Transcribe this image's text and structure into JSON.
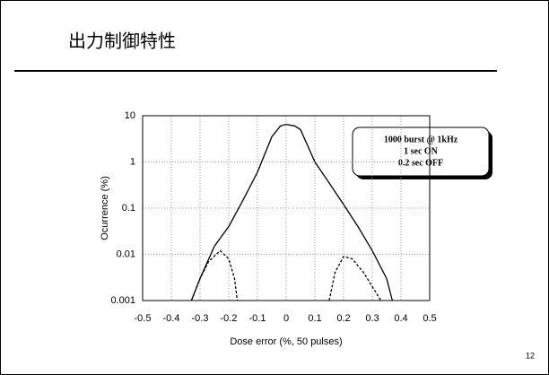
{
  "header": {
    "title": "出力制御特性",
    "page_number": "12"
  },
  "chart_data": {
    "type": "line",
    "xlabel": "Dose error (%, 50 pulses)",
    "ylabel": "Ocurrence (%)",
    "annotations": [
      "1000 burst @ 1kHz",
      "1 sec ON",
      "0.2 sec OFF"
    ],
    "xlim": [
      -0.5,
      0.5
    ],
    "xticks": [
      -0.5,
      -0.4,
      -0.3,
      -0.2,
      -0.1,
      0,
      0.1,
      0.2,
      0.3,
      0.4,
      0.5
    ],
    "ylim": [
      0.001,
      10
    ],
    "yticks": [
      0.001,
      0.01,
      0.1,
      1,
      10
    ],
    "ylog": true,
    "grid": true,
    "series": [
      {
        "color": "#000000",
        "dash": false,
        "x": [
          -0.33,
          -0.3,
          -0.25,
          -0.2,
          -0.15,
          -0.1,
          -0.05,
          -0.02,
          0,
          0.03,
          0.05,
          0.1,
          0.15,
          0.2,
          0.25,
          0.3,
          0.35,
          0.37
        ],
        "values": [
          0.001,
          0.003,
          0.015,
          0.04,
          0.15,
          0.6,
          3.5,
          6,
          6.5,
          6,
          5,
          1,
          0.35,
          0.12,
          0.04,
          0.012,
          0.003,
          0.001
        ]
      },
      {
        "color": "#000000",
        "dash": true,
        "x": [
          -0.33,
          -0.3,
          -0.27,
          -0.23,
          -0.2,
          -0.18,
          -0.17,
          null,
          0.15,
          0.17,
          0.2,
          0.23,
          0.27,
          0.3,
          0.33
        ],
        "values": [
          0.001,
          0.003,
          0.007,
          0.012,
          0.008,
          0.003,
          0.001,
          null,
          0.001,
          0.004,
          0.009,
          0.008,
          0.004,
          0.002,
          0.001
        ]
      }
    ]
  }
}
